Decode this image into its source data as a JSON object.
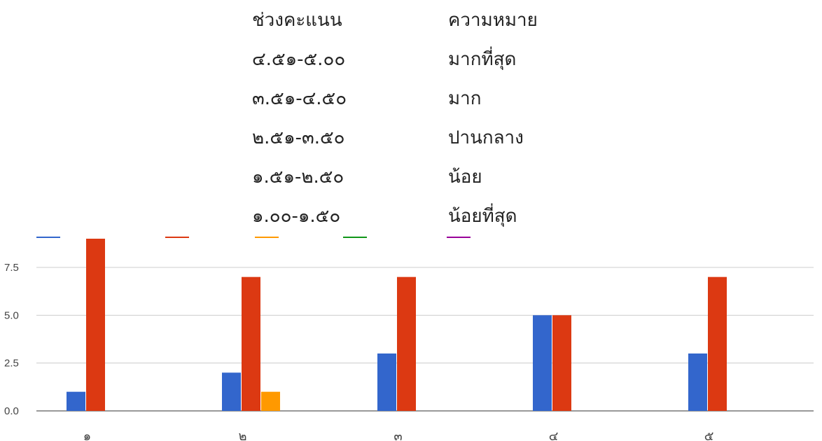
{
  "legend_table": {
    "header": {
      "range": "ช่วงคะแนน",
      "meaning": "ความหมาย"
    },
    "rows": [
      {
        "range": "๔.๕๑-๕.๐๐",
        "meaning": "มากที่สุด"
      },
      {
        "range": "๓.๕๑-๔.๕๐",
        "meaning": "มาก"
      },
      {
        "range": "๒.๕๑-๓.๕๐",
        "meaning": "ปานกลาง"
      },
      {
        "range": "๑.๕๑-๒.๕๐",
        "meaning": "น้อย"
      },
      {
        "range": "๑.๐๐-๑.๕๐",
        "meaning": "น้อยที่สุด"
      }
    ]
  },
  "chart_data": {
    "type": "bar",
    "categories": [
      "๑",
      "๒",
      "๓",
      "๔",
      "๕"
    ],
    "series": [
      {
        "color": "#3366cc",
        "values": [
          1,
          2,
          3,
          5,
          3
        ]
      },
      {
        "color": "#dc3912",
        "values": [
          9,
          7,
          7,
          5,
          7
        ]
      },
      {
        "color": "#ff9900",
        "values": [
          0,
          1,
          0,
          0,
          0
        ]
      },
      {
        "color": "#109618",
        "values": [
          0,
          0,
          0,
          0,
          0
        ]
      },
      {
        "color": "#990099",
        "values": [
          0,
          0,
          0,
          0,
          0
        ]
      }
    ],
    "ylim": [
      0,
      9
    ],
    "yticks": [
      "0.0",
      "2.5",
      "5.0",
      "7.5"
    ],
    "ytick_values": [
      0,
      2.5,
      5,
      7.5
    ],
    "grid": true,
    "legend_position": "top"
  }
}
